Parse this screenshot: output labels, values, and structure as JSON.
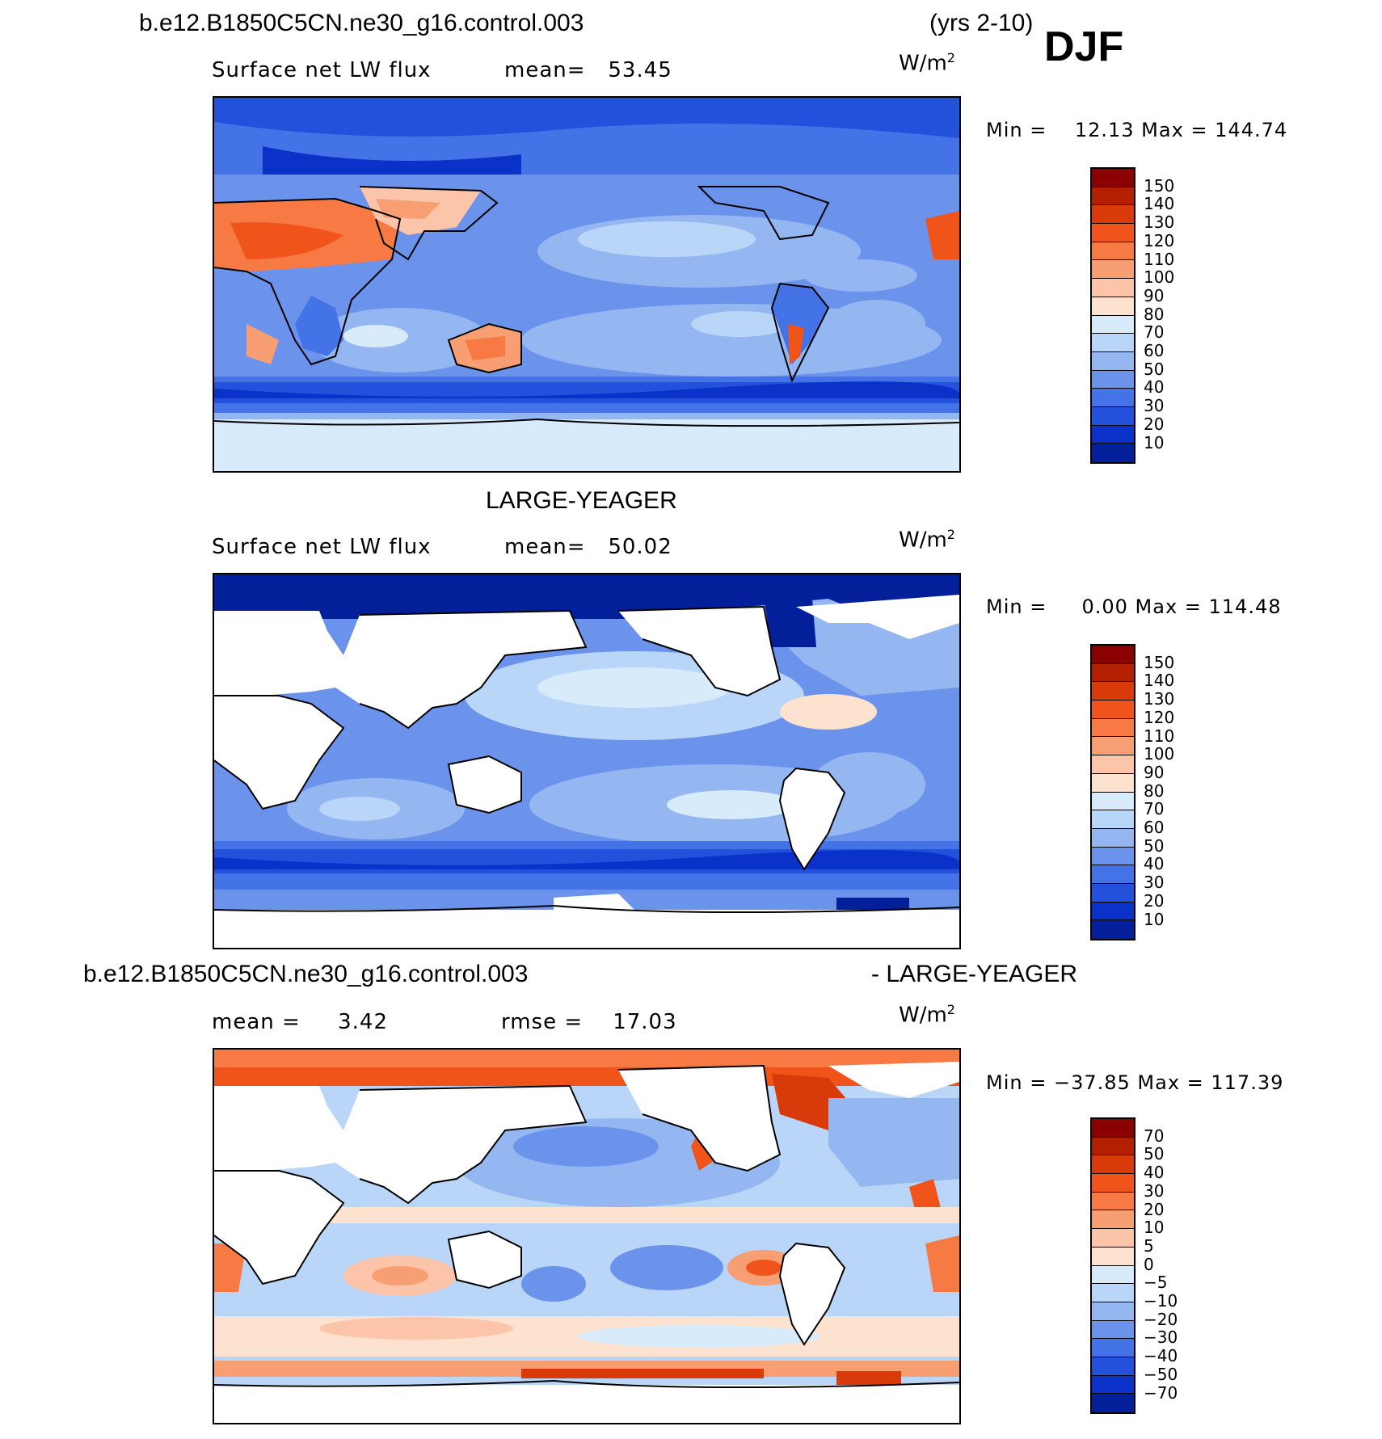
{
  "figure": {
    "top_title_left": "b.e12.B1850C5CN.ne30_g16.control.003",
    "top_title_right": "(yrs 2-10)",
    "season": "DJF"
  },
  "panels": [
    {
      "heading": "",
      "variable": "Surface net LW flux",
      "stat1": "mean=   53.45",
      "stat2": "",
      "units_base": "W/m",
      "units_exp": "2",
      "minmax": "Min =    12.13 Max = 144.74",
      "levels": [
        "150",
        "140",
        "130",
        "120",
        "110",
        "100",
        "90",
        "80",
        "70",
        "60",
        "50",
        "40",
        "30",
        "20",
        "10"
      ],
      "colors": [
        "#8b0000",
        "#b22000",
        "#d83a0a",
        "#f0541a",
        "#f77a45",
        "#f79e72",
        "#fcc4a8",
        "#fde3cf",
        "#d7ebfb",
        "#b9d5f8",
        "#94b7f2",
        "#6b93ec",
        "#4373e6",
        "#2351dc",
        "#0b32c8",
        "#031f9a"
      ]
    },
    {
      "heading": "LARGE-YEAGER",
      "variable": "Surface net LW flux",
      "stat1": "mean=   50.02",
      "stat2": "",
      "units_base": "W/m",
      "units_exp": "2",
      "minmax": "Min =     0.00 Max = 114.48",
      "levels": [
        "150",
        "140",
        "130",
        "120",
        "110",
        "100",
        "90",
        "80",
        "70",
        "60",
        "50",
        "40",
        "30",
        "20",
        "10"
      ],
      "colors": [
        "#8b0000",
        "#b22000",
        "#d83a0a",
        "#f0541a",
        "#f77a45",
        "#f79e72",
        "#fcc4a8",
        "#fde3cf",
        "#d7ebfb",
        "#b9d5f8",
        "#94b7f2",
        "#6b93ec",
        "#4373e6",
        "#2351dc",
        "#0b32c8",
        "#031f9a"
      ]
    },
    {
      "heading_left": "b.e12.B1850C5CN.ne30_g16.control.003",
      "heading_right": "- LARGE-YEAGER",
      "variable": "",
      "stat1": "mean =     3.42",
      "stat2": "rmse =    17.03",
      "units_base": "W/m",
      "units_exp": "2",
      "minmax": "Min = −37.85 Max = 117.39",
      "levels": [
        "70",
        "50",
        "40",
        "30",
        "20",
        "10",
        "5",
        "0",
        "−5",
        "−10",
        "−20",
        "−30",
        "−40",
        "−50",
        "−70"
      ],
      "colors": [
        "#8b0000",
        "#b22000",
        "#d83a0a",
        "#f0541a",
        "#f77a45",
        "#f79e72",
        "#fcc4a8",
        "#fde3cf",
        "#d7ebfb",
        "#b9d5f8",
        "#94b7f2",
        "#6b93ec",
        "#4373e6",
        "#2351dc",
        "#0b32c8",
        "#031f9a"
      ]
    }
  ]
}
